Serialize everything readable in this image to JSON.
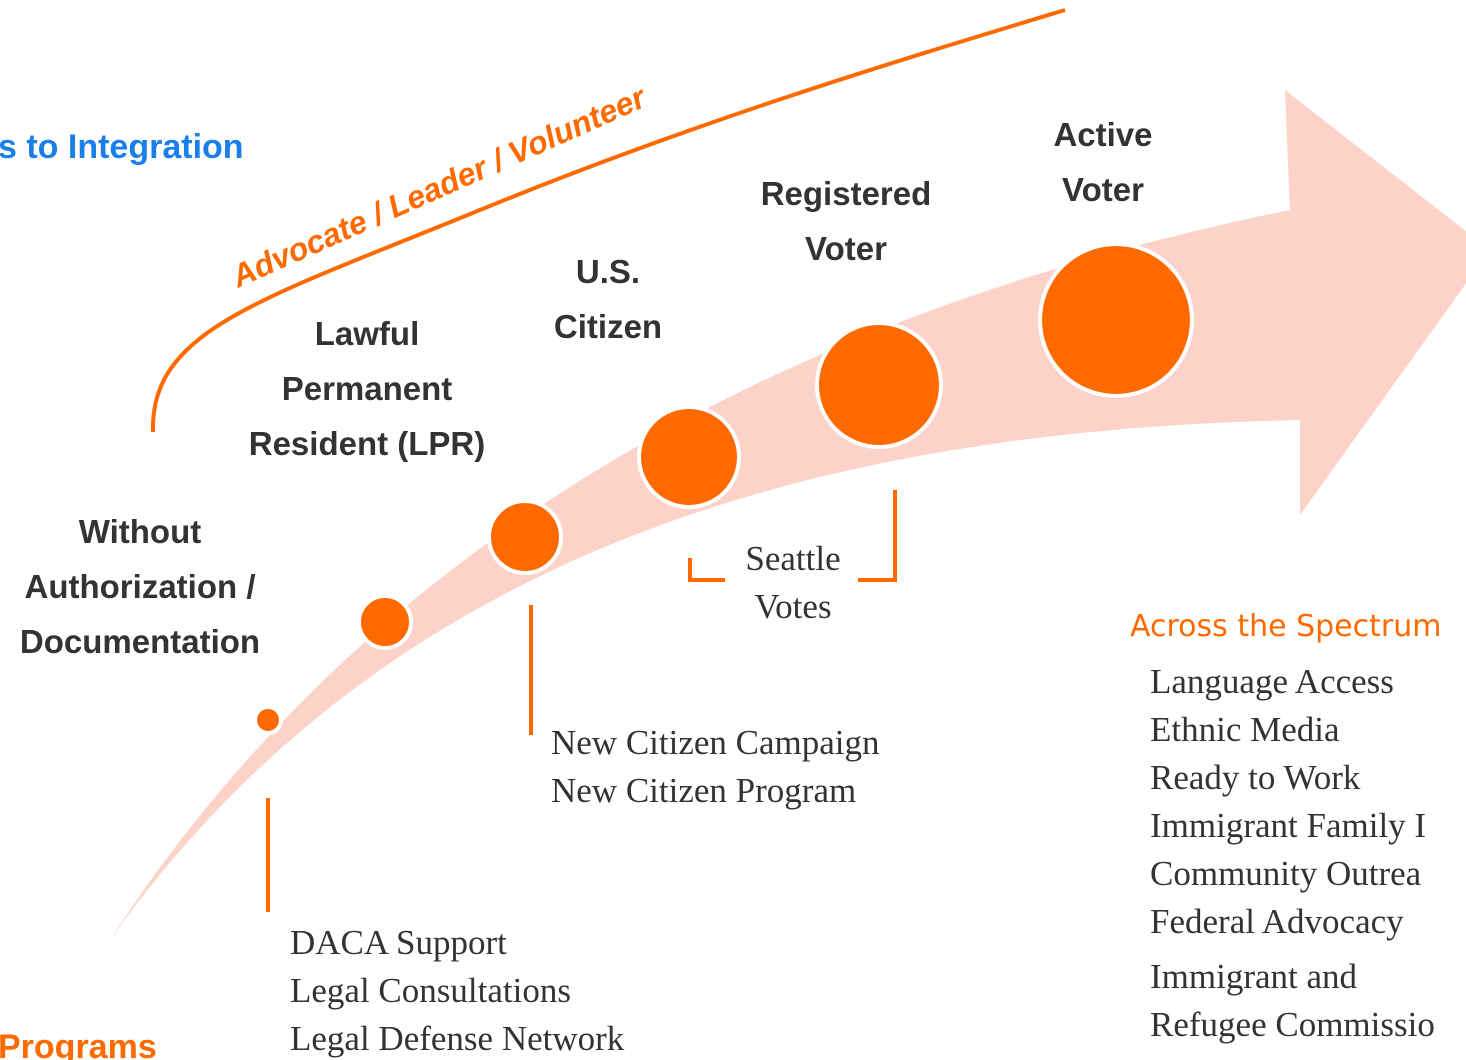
{
  "title": "s to Integration",
  "programs_heading": "Programs",
  "arc_label": "Advocate / Leader / Volunteer",
  "stages": [
    {
      "lines": [
        "Without",
        "Authorization /",
        "Documentation"
      ]
    },
    {
      "lines": [
        "Lawful",
        "Permanent",
        "Resident (LPR)"
      ]
    },
    {
      "lines": [
        "U.S.",
        "Citizen"
      ]
    },
    {
      "lines": [
        "Registered",
        "Voter"
      ]
    },
    {
      "lines": [
        "Active",
        "Voter"
      ]
    }
  ],
  "programs": [
    {
      "lines": [
        "DACA Support",
        "Legal Consultations",
        "Legal Defense Network"
      ]
    },
    {
      "lines": [
        "New Citizen Campaign",
        "New Citizen Program"
      ]
    },
    {
      "lines": [
        "Seattle",
        "Votes"
      ]
    }
  ],
  "spectrum": {
    "heading": "Across the Spectrum",
    "items": [
      "Language Access",
      "Ethnic Media",
      "Ready to Work",
      "Immigrant Family I",
      "Community Outrea",
      "Federal Advocacy",
      "Immigrant and",
      "Refugee Commissio"
    ]
  }
}
